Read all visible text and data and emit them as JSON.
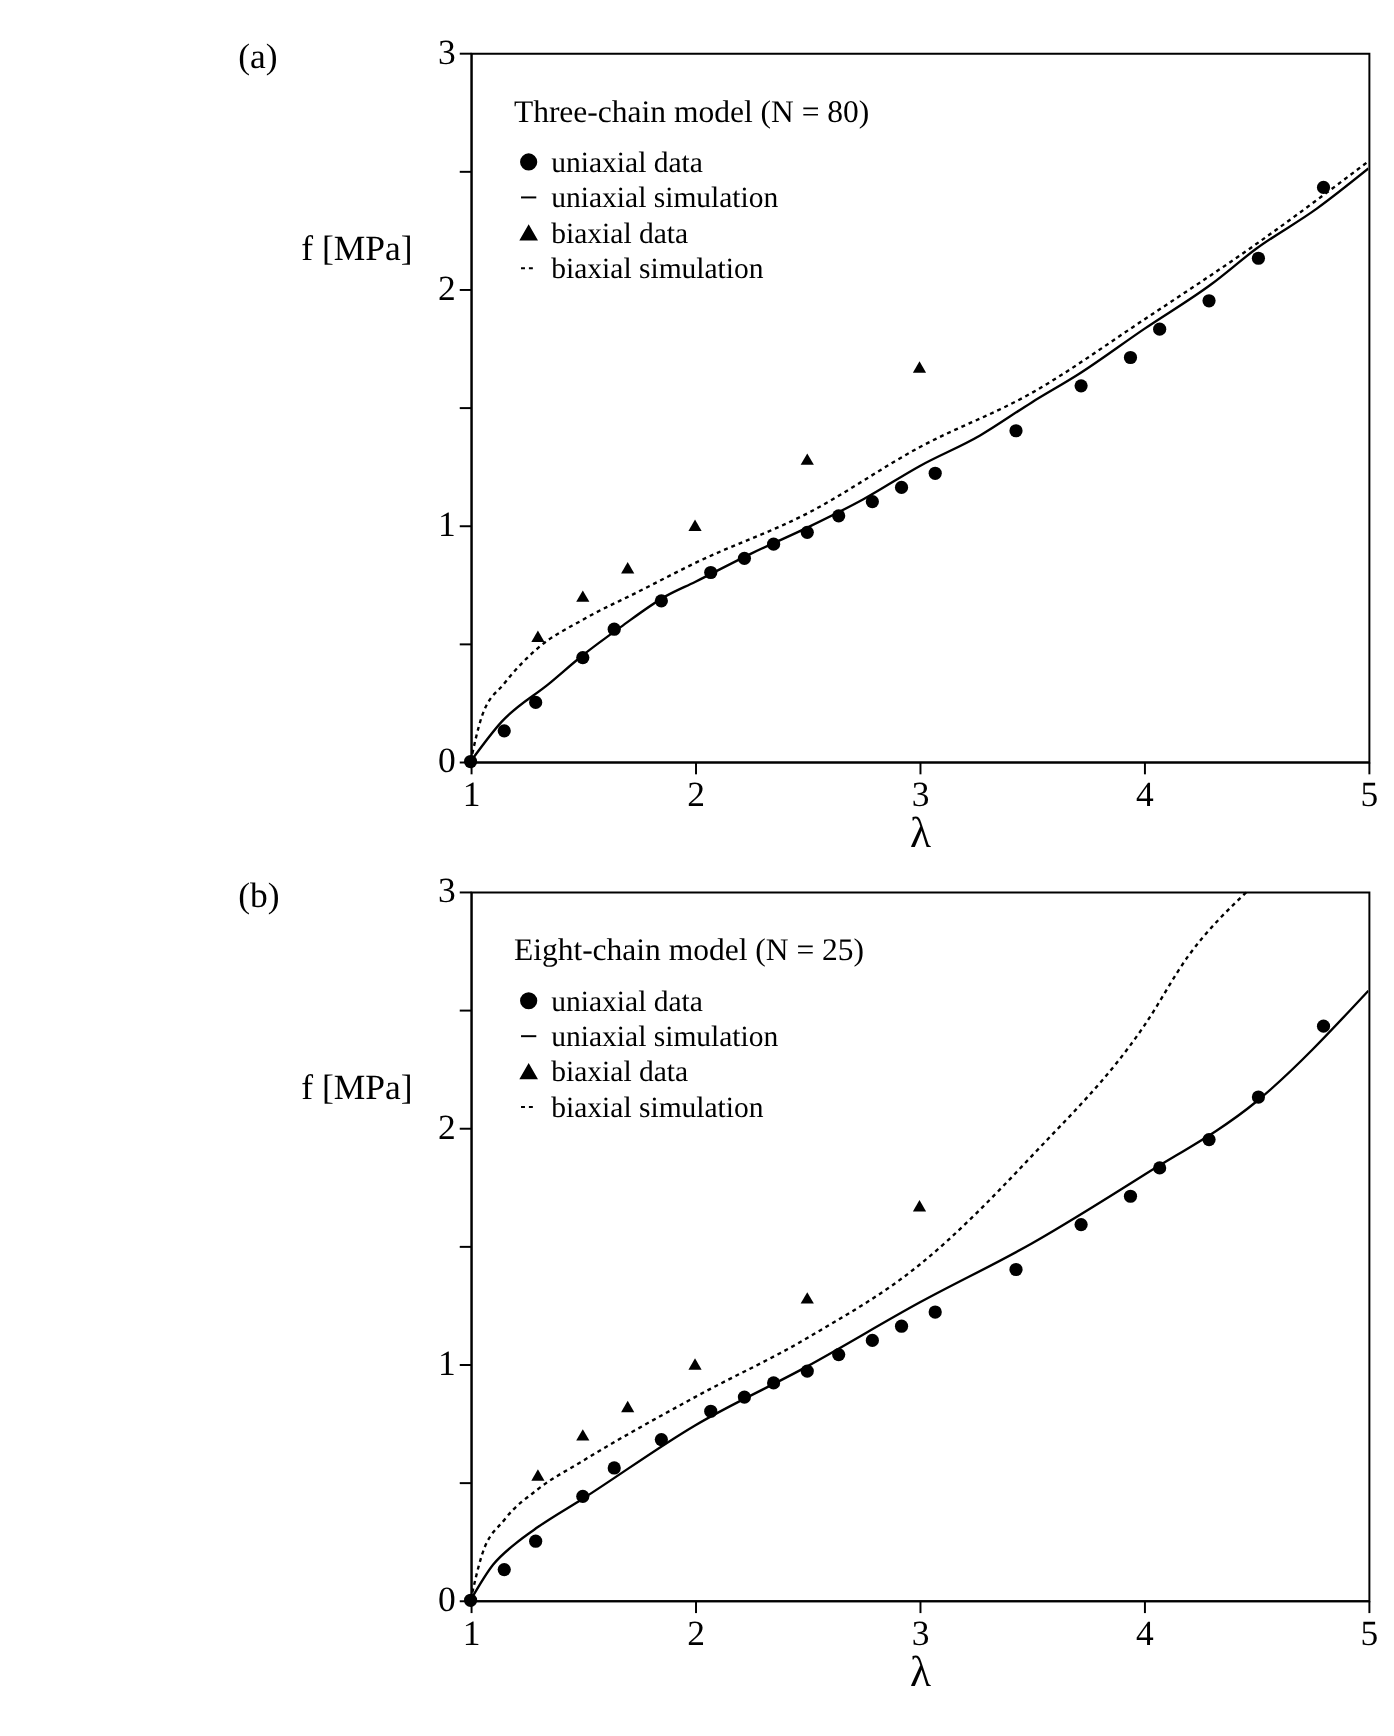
{
  "chart_data": [
    {
      "type": "line",
      "title": "(a)",
      "legend_title": "Three-chain model (N = 80)",
      "xlabel": "λ",
      "ylabel": "f [MPa]",
      "xlim": [
        1,
        5
      ],
      "ylim": [
        0,
        3
      ],
      "xticks": [
        1,
        2,
        3,
        4,
        5
      ],
      "yticks": [
        0,
        {
          "value": 0.5,
          "label": null
        },
        1,
        {
          "value": 1.5,
          "label": null
        },
        2,
        {
          "value": 2.5,
          "label": null
        },
        3
      ],
      "grid": false,
      "legend": "top left",
      "series": [
        {
          "name": "uniaxial data",
          "type": "scatter",
          "marker": "circle",
          "color": "#000000",
          "x": [
            1,
            1.15,
            1.29,
            1.5,
            1.64,
            1.85,
            2.07,
            2.22,
            2.35,
            2.5,
            2.64,
            2.79,
            2.92,
            3.07,
            3.43,
            3.72,
            3.94,
            4.07,
            4.29,
            4.51,
            4.8
          ],
          "values": [
            0,
            0.13,
            0.25,
            0.44,
            0.56,
            0.68,
            0.8,
            0.86,
            0.92,
            0.97,
            1.04,
            1.1,
            1.16,
            1.22,
            1.4,
            1.59,
            1.71,
            1.83,
            1.95,
            2.13,
            2.43
          ]
        },
        {
          "name": "uniaxial simulation",
          "type": "line",
          "line_style": "solid",
          "color": "#000000",
          "x": [
            1,
            1.14,
            1.35,
            1.5,
            1.67,
            1.87,
            2.0,
            2.25,
            2.5,
            2.75,
            3.0,
            3.27,
            3.5,
            3.71,
            4.0,
            4.3,
            4.5,
            4.77,
            5.0
          ],
          "values": [
            0,
            0.17,
            0.33,
            0.45,
            0.57,
            0.7,
            0.76,
            0.88,
            0.99,
            1.11,
            1.25,
            1.38,
            1.52,
            1.64,
            1.83,
            2.02,
            2.17,
            2.34,
            2.51
          ]
        },
        {
          "name": "biaxial data",
          "type": "scatter",
          "marker": "triangle",
          "color": "#000000",
          "x": [
            1.3,
            1.5,
            1.7,
            2.0,
            2.5,
            3.0
          ],
          "values": [
            0.53,
            0.7,
            0.82,
            1.0,
            1.28,
            1.67
          ]
        },
        {
          "name": "biaxial simulation",
          "type": "line",
          "line_style": "dotted",
          "color": "#000000",
          "x": [
            1,
            1.05,
            1.15,
            1.3,
            1.5,
            1.75,
            2.0,
            2.5,
            3.0,
            3.5,
            4.0,
            4.5,
            5.0
          ],
          "values": [
            0,
            0.19,
            0.33,
            0.48,
            0.6,
            0.72,
            0.84,
            1.05,
            1.33,
            1.56,
            1.87,
            2.19,
            2.54
          ]
        }
      ]
    },
    {
      "type": "line",
      "title": "(b)",
      "legend_title": "Eight-chain model (N = 25)",
      "xlabel": "λ",
      "ylabel": "f [MPa]",
      "xlim": [
        1,
        5
      ],
      "ylim": [
        0,
        3
      ],
      "xticks": [
        1,
        2,
        3,
        4,
        5
      ],
      "yticks": [
        0,
        {
          "value": 0.5,
          "label": null
        },
        1,
        {
          "value": 1.5,
          "label": null
        },
        2,
        {
          "value": 2.5,
          "label": null
        },
        3
      ],
      "grid": false,
      "legend": "top left",
      "series": [
        {
          "name": "uniaxial data",
          "type": "scatter",
          "marker": "circle",
          "color": "#000000",
          "x": [
            1,
            1.15,
            1.29,
            1.5,
            1.64,
            1.85,
            2.07,
            2.22,
            2.35,
            2.5,
            2.64,
            2.79,
            2.92,
            3.07,
            3.43,
            3.72,
            3.94,
            4.07,
            4.29,
            4.51,
            4.8
          ],
          "values": [
            0,
            0.13,
            0.25,
            0.44,
            0.56,
            0.68,
            0.8,
            0.86,
            0.92,
            0.97,
            1.04,
            1.1,
            1.16,
            1.22,
            1.4,
            1.59,
            1.71,
            1.83,
            1.95,
            2.13,
            2.43
          ]
        },
        {
          "name": "uniaxial simulation",
          "type": "line",
          "line_style": "solid",
          "color": "#000000",
          "x": [
            1,
            1.1,
            1.2,
            1.3,
            1.5,
            2.0,
            2.5,
            3.0,
            3.5,
            4.0,
            4.5,
            5.0
          ],
          "values": [
            0,
            0.15,
            0.24,
            0.31,
            0.43,
            0.74,
            0.99,
            1.26,
            1.51,
            1.8,
            2.11,
            2.58
          ]
        },
        {
          "name": "biaxial data",
          "type": "scatter",
          "marker": "triangle",
          "color": "#000000",
          "x": [
            1.3,
            1.5,
            1.7,
            2.0,
            2.5,
            3.0
          ],
          "values": [
            0.53,
            0.7,
            0.82,
            1.0,
            1.28,
            1.67
          ]
        },
        {
          "name": "biaxial simulation",
          "type": "line",
          "line_style": "dotted",
          "color": "#000000",
          "x": [
            1,
            1.05,
            1.15,
            1.3,
            1.5,
            2.0,
            2.5,
            3.0,
            3.5,
            4.0,
            4.2,
            4.46
          ],
          "values": [
            0,
            0.19,
            0.34,
            0.47,
            0.59,
            0.86,
            1.11,
            1.42,
            1.88,
            2.43,
            2.73,
            3.0
          ]
        }
      ]
    }
  ]
}
